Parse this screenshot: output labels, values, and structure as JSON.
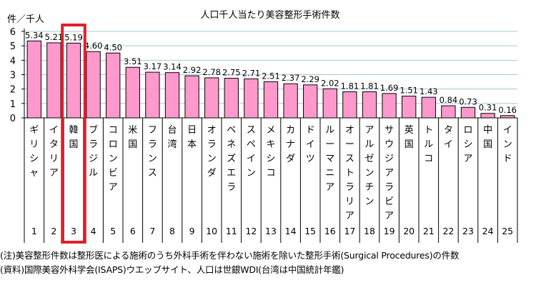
{
  "chart_data": {
    "type": "bar",
    "title": "人口千人当たり美容整形手術件数",
    "ylabel": "件／千人",
    "xlabel": "",
    "ylim": [
      0,
      6
    ],
    "yticks": [
      "0",
      "1",
      "2",
      "3",
      "4",
      "5",
      "6"
    ],
    "grid": true,
    "legend": "none",
    "highlight_index": 2,
    "colors": {
      "bar": "#ff99cc",
      "bar_border": "#000000",
      "grid": "#a6c8d8",
      "highlight": "#e0202a"
    },
    "categories": [
      "ギリシャ",
      "イタリア",
      "韓国",
      "ブラジル",
      "コロンビア",
      "米国",
      "フランス",
      "台湾",
      "日本",
      "オランダ",
      "ベネズエラ",
      "スペイン",
      "メキシコ",
      "カナダ",
      "ドイツ",
      "ルーマニア",
      "オーストラリア",
      "アルゼンチン",
      "サウジアラビア",
      "英国",
      "トルコ",
      "タイ",
      "ロシア",
      "中国",
      "インド"
    ],
    "ranks": [
      "1",
      "2",
      "3",
      "4",
      "5",
      "6",
      "7",
      "8",
      "9",
      "10",
      "11",
      "12",
      "13",
      "14",
      "15",
      "16",
      "17",
      "18",
      "19",
      "20",
      "21",
      "22",
      "23",
      "24",
      "25"
    ],
    "values": [
      5.34,
      5.21,
      5.19,
      4.6,
      4.5,
      3.51,
      3.17,
      3.14,
      2.92,
      2.78,
      2.75,
      2.71,
      2.51,
      2.37,
      2.29,
      2.02,
      1.81,
      1.81,
      1.69,
      1.51,
      1.43,
      0.84,
      0.73,
      0.31,
      0.16
    ],
    "value_labels": [
      "5.34",
      "5.21",
      "5.19",
      "4.60",
      "4.50",
      "3.51",
      "3.17",
      "3.14",
      "2.92",
      "2.78",
      "2.75",
      "2.71",
      "2.51",
      "2.37",
      "2.29",
      "2.02",
      "1.81",
      "1.81",
      "1.69",
      "1.51",
      "1.43",
      "0.84",
      "0.73",
      "0.31",
      "0.16"
    ]
  },
  "notes": {
    "note1": "(注)美容整形件数は整形医による施術のうち外科手術を伴わない施術を除いた整形手術(Surgical Procedures)の件数",
    "note2": "(資料)国際美容外科学会(ISAPS)ウエッブサイト、人口は世銀WDI(台湾は中国統計年鑑)"
  }
}
